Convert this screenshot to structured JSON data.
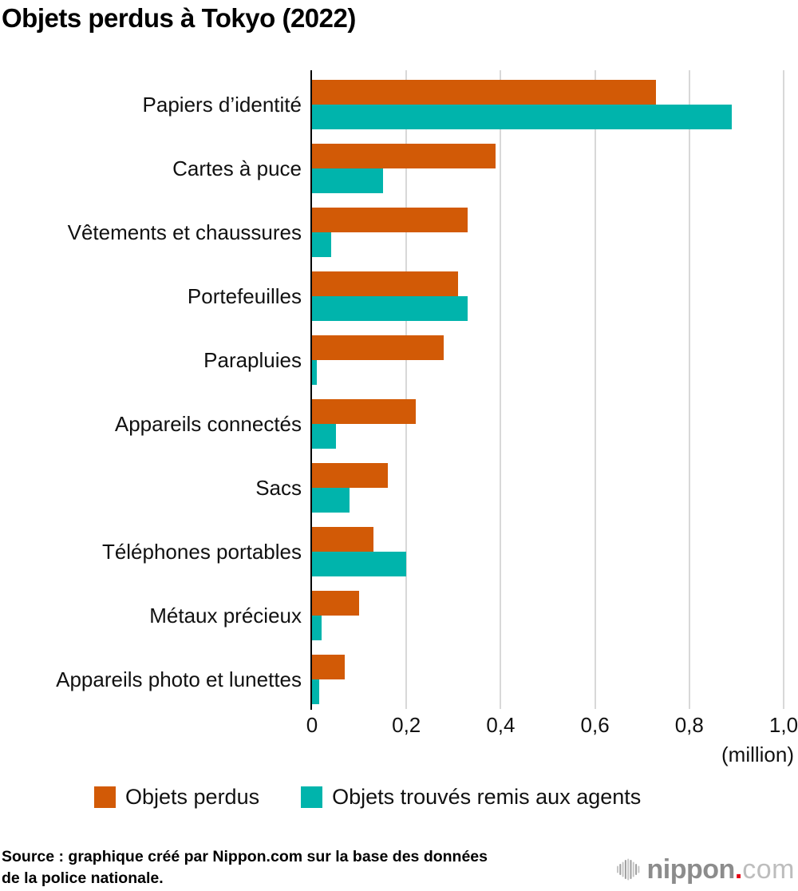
{
  "title": "Objets perdus à Tokyo (2022)",
  "chart_data": {
    "type": "bar",
    "orientation": "horizontal",
    "title": "Objets perdus à Tokyo (2022)",
    "categories": [
      "Papiers d’identité",
      "Cartes à puce",
      "Vêtements et chaussures",
      "Portefeuilles",
      "Parapluies",
      "Appareils connectés",
      "Sacs",
      "Téléphones portables",
      "Métaux précieux",
      "Appareils photo et lunettes"
    ],
    "series": [
      {
        "name": "Objets perdus",
        "color": "#d25a06",
        "values": [
          0.73,
          0.39,
          0.33,
          0.31,
          0.28,
          0.22,
          0.16,
          0.13,
          0.1,
          0.07
        ]
      },
      {
        "name": "Objets trouvés remis aux agents",
        "color": "#00b4ac",
        "values": [
          0.89,
          0.15,
          0.04,
          0.33,
          0.01,
          0.05,
          0.08,
          0.2,
          0.02,
          0.015
        ]
      }
    ],
    "xlim": [
      0,
      1.0
    ],
    "x_tick_values": [
      0,
      0.2,
      0.4,
      0.6,
      0.8,
      1.0
    ],
    "x_tick_labels": [
      "0",
      "0,2",
      "0,4",
      "0,6",
      "0,8",
      "1,0"
    ],
    "unit": "(million)",
    "grid": "vertical",
    "legend_position": "bottom"
  },
  "legend": {
    "items": [
      {
        "label": "Objets perdus",
        "color": "#d25a06"
      },
      {
        "label": "Objets trouvés remis aux agents",
        "color": "#00b4ac"
      }
    ]
  },
  "source": {
    "line1": "Source : graphique créé par Nippon.com sur la base des données",
    "line2": "de la police nationale."
  },
  "logo": {
    "name": "nippon",
    "dot": ".",
    "tld": "com",
    "icon": "soundwave-icon"
  },
  "colors": {
    "bar_lost": "#d25a06",
    "bar_found": "#00b4ac",
    "gridline": "#d8d8d8",
    "axis": "#000000",
    "text": "#111111",
    "logo_gray": "#8c8c8c",
    "logo_light_gray": "#bdbdbd",
    "logo_red": "#e60012"
  }
}
